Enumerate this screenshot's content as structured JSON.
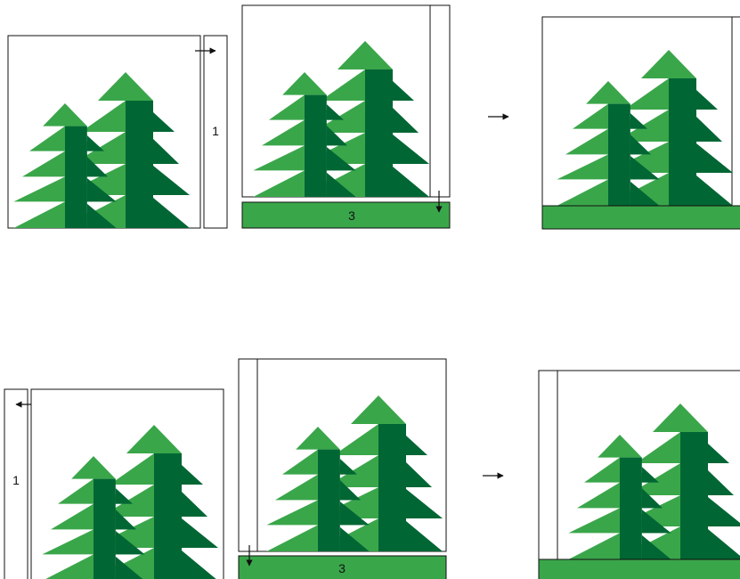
{
  "diagram": {
    "rows": [
      {
        "steps": [
          {
            "strip_label": "1",
            "strip_direction": "right"
          },
          {
            "strip_label": "3",
            "strip_direction": "down"
          },
          {}
        ]
      },
      {
        "steps": [
          {
            "strip_label": "1",
            "strip_direction": "left"
          },
          {
            "strip_label": "3",
            "strip_direction": "down"
          },
          {}
        ]
      }
    ],
    "colors": {
      "light_green": "#3aa64a",
      "dark_green": "#006634",
      "outline": "#111111",
      "background": "#ffffff"
    },
    "icons": [
      "right-arrow-icon",
      "left-arrow-icon",
      "down-arrow-icon",
      "tree-icon"
    ]
  }
}
